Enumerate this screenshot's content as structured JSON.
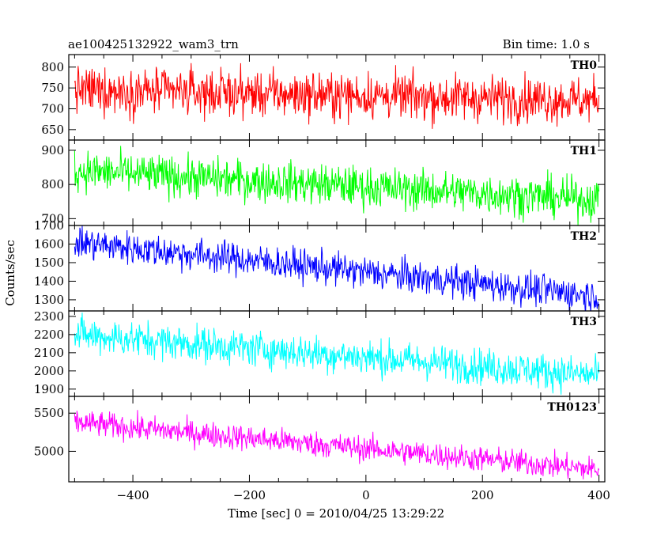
{
  "chart_data": {
    "type": "line",
    "title_left": "ae100425132922_wam3_trn",
    "title_right": "Bin time: 1.0 s",
    "xlabel": "Time [sec] 0 = 2010/04/25 13:29:22",
    "ylabel": "Counts/sec",
    "xlim": [
      -510,
      410
    ],
    "x_start": -500,
    "x_end": 400,
    "x_step": 1,
    "x_ticks": [
      -400,
      -200,
      0,
      200,
      400
    ],
    "x_tick_labels": [
      "−400",
      "−200",
      "0",
      "200",
      "400"
    ],
    "panels": [
      {
        "name": "TH0",
        "color": "#ff0000",
        "ylim": [
          625,
          830
        ],
        "y_ticks": [
          650,
          700,
          750,
          800
        ],
        "trend_start": 745,
        "trend_end": 720,
        "noise": 28
      },
      {
        "name": "TH1",
        "color": "#00ff00",
        "ylim": [
          680,
          930
        ],
        "y_ticks": [
          700,
          800,
          900
        ],
        "trend_start": 840,
        "trend_end": 755,
        "noise": 30
      },
      {
        "name": "TH2",
        "color": "#0000ff",
        "ylim": [
          1240,
          1700
        ],
        "y_ticks": [
          1300,
          1400,
          1500,
          1600,
          1700
        ],
        "trend_start": 1610,
        "trend_end": 1320,
        "noise": 45
      },
      {
        "name": "TH3",
        "color": "#00ffff",
        "ylim": [
          1860,
          2330
        ],
        "y_ticks": [
          1900,
          2000,
          2100,
          2200,
          2300
        ],
        "trend_start": 2200,
        "trend_end": 1975,
        "noise": 50
      },
      {
        "name": "TH0123",
        "color": "#ff00ff",
        "ylim": [
          4600,
          5720
        ],
        "y_ticks": [
          5000,
          5500
        ],
        "trend_start": 5380,
        "trend_end": 4760,
        "noise": 85
      }
    ]
  }
}
